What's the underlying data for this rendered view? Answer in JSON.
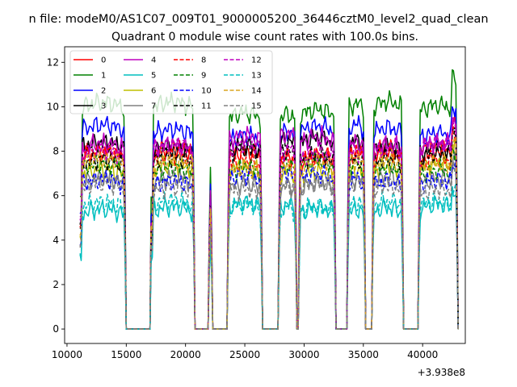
{
  "figure": {
    "suptitle": "n file: modeM0/AS1C07_009T01_9000005200_36446cztM0_level2_quad_clean",
    "x_offset_text": "+3.938e8"
  },
  "chart_data": {
    "type": "line",
    "title": "Quadrant 0 module wise count rates with 100.0s bins.",
    "xlabel": "",
    "ylabel": "",
    "xlim": [
      9800,
      43600
    ],
    "ylim": [
      -0.65,
      12.7
    ],
    "xticks": [
      10000,
      15000,
      20000,
      25000,
      30000,
      35000,
      40000
    ],
    "yticks": [
      0,
      2,
      4,
      6,
      8,
      10,
      12
    ],
    "x_start": 11100,
    "x_step": 100,
    "x_end": 43000,
    "grid": false,
    "legend_position": "top-left",
    "legend_columns": 4,
    "gti_segments": [
      [
        11100,
        14900
      ],
      [
        17100,
        20700
      ],
      [
        22000,
        22200
      ],
      [
        23600,
        26400
      ],
      [
        27900,
        29300
      ],
      [
        29600,
        32600
      ],
      [
        33700,
        35100
      ],
      [
        35800,
        38300
      ],
      [
        39700,
        42900
      ]
    ],
    "series": [
      {
        "name": "0",
        "level": 7.7,
        "color": "#ff0000",
        "dash": "solid"
      },
      {
        "name": "1",
        "level": 9.7,
        "color": "#008000",
        "dash": "solid"
      },
      {
        "name": "2",
        "level": 8.7,
        "color": "#0000ff",
        "dash": "solid"
      },
      {
        "name": "3",
        "level": 8.1,
        "color": "#000000",
        "dash": "solid"
      },
      {
        "name": "4",
        "level": 8.3,
        "color": "#bf00bf",
        "dash": "solid"
      },
      {
        "name": "5",
        "level": 5.3,
        "color": "#00bfbf",
        "dash": "solid"
      },
      {
        "name": "6",
        "level": 7.0,
        "color": "#bfbf00",
        "dash": "solid"
      },
      {
        "name": "7",
        "level": 6.4,
        "color": "#808080",
        "dash": "solid"
      },
      {
        "name": "8",
        "level": 7.5,
        "color": "#ff0000",
        "dash": "dashed"
      },
      {
        "name": "9",
        "level": 7.1,
        "color": "#008000",
        "dash": "dashed"
      },
      {
        "name": "10",
        "level": 6.6,
        "color": "#0000ff",
        "dash": "dashed"
      },
      {
        "name": "11",
        "level": 7.6,
        "color": "#000000",
        "dash": "dashed"
      },
      {
        "name": "12",
        "level": 7.9,
        "color": "#bf00bf",
        "dash": "dashed"
      },
      {
        "name": "13",
        "level": 5.4,
        "color": "#00bfbf",
        "dash": "dashed"
      },
      {
        "name": "14",
        "level": 7.2,
        "color": "#daa520",
        "dash": "dashed"
      },
      {
        "name": "15",
        "level": 6.2,
        "color": "#808080",
        "dash": "dashed"
      }
    ]
  }
}
